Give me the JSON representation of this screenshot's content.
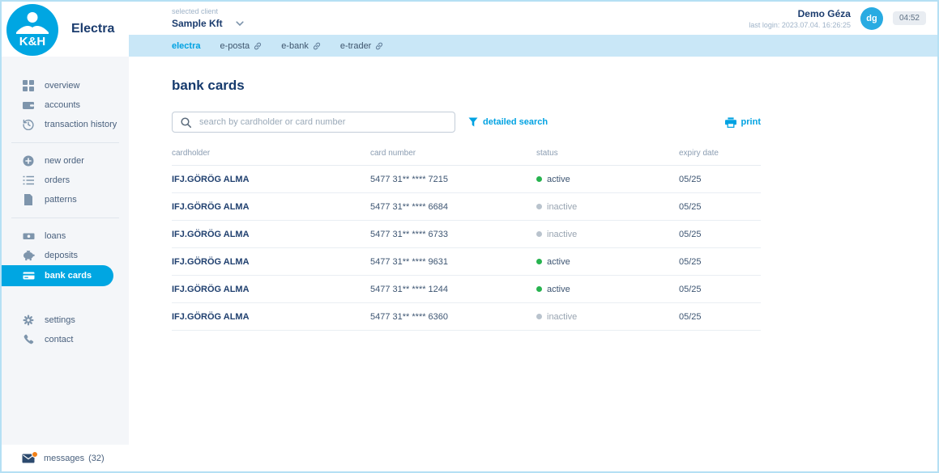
{
  "brand": {
    "logo_text": "K&H",
    "app_name": "Electra",
    "brand_color": "#00a6e2"
  },
  "header": {
    "selected_client_label": "selected client",
    "selected_client": "Sample Kft",
    "user_name": "Demo Géza",
    "last_login": "last login: 2023.07.04. 16:26:25",
    "avatar_initials": "dg",
    "session_timer": "04:52"
  },
  "tabs": [
    {
      "label": "electra",
      "active": true,
      "external": false
    },
    {
      "label": "e-posta",
      "active": false,
      "external": true
    },
    {
      "label": "e-bank",
      "active": false,
      "external": true
    },
    {
      "label": "e-trader",
      "active": false,
      "external": true
    }
  ],
  "sidebar": {
    "groups": [
      {
        "items": [
          {
            "label": "overview",
            "icon": "grid-icon"
          },
          {
            "label": "accounts",
            "icon": "wallet-icon"
          },
          {
            "label": "transaction history",
            "icon": "history-icon"
          }
        ]
      },
      {
        "items": [
          {
            "label": "new order",
            "icon": "plus-circle-icon"
          },
          {
            "label": "orders",
            "icon": "list-icon"
          },
          {
            "label": "patterns",
            "icon": "document-icon"
          }
        ]
      },
      {
        "items": [
          {
            "label": "loans",
            "icon": "banknote-icon"
          },
          {
            "label": "deposits",
            "icon": "piggy-bank-icon"
          },
          {
            "label": "bank cards",
            "icon": "credit-card-icon",
            "active": true
          }
        ]
      },
      {
        "items": [
          {
            "label": "settings",
            "icon": "gear-icon"
          },
          {
            "label": "contact",
            "icon": "phone-icon"
          }
        ]
      }
    ],
    "messages_label": "messages",
    "messages_count": "(32)"
  },
  "main": {
    "title": "bank cards",
    "search_placeholder": "search by cardholder or card number",
    "detailed_search_label": "detailed search",
    "print_label": "print",
    "table": {
      "columns": [
        "cardholder",
        "card number",
        "status",
        "expiry date"
      ],
      "rows": [
        {
          "cardholder": "IFJ.GÖRÖG ALMA",
          "card_number": "5477 31** **** 7215",
          "status": "active",
          "expiry": "05/25"
        },
        {
          "cardholder": "IFJ.GÖRÖG ALMA",
          "card_number": "5477 31** **** 6684",
          "status": "inactive",
          "expiry": "05/25"
        },
        {
          "cardholder": "IFJ.GÖRÖG ALMA",
          "card_number": "5477 31** **** 6733",
          "status": "inactive",
          "expiry": "05/25"
        },
        {
          "cardholder": "IFJ.GÖRÖG ALMA",
          "card_number": "5477 31** **** 9631",
          "status": "active",
          "expiry": "05/25"
        },
        {
          "cardholder": "IFJ.GÖRÖG ALMA",
          "card_number": "5477 31** **** 1244",
          "status": "active",
          "expiry": "05/25"
        },
        {
          "cardholder": "IFJ.GÖRÖG ALMA",
          "card_number": "5477 31** **** 6360",
          "status": "inactive",
          "expiry": "05/25"
        }
      ]
    }
  },
  "colors": {
    "brand_blue": "#00a6e2",
    "tabbar_bg": "#c9e7f7",
    "status_active": "#27b34f",
    "status_inactive": "#b9c3cd",
    "alert_orange": "#f08019"
  }
}
